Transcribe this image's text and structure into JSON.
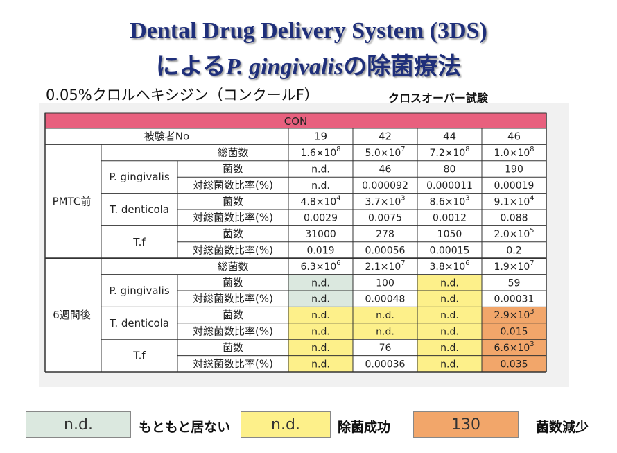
{
  "title": {
    "line1": "Dental Drug Delivery System (3DS)",
    "line2_pre": "による",
    "line2_italic": "P. gingivalis",
    "line2_post": "の除菌療法"
  },
  "subtitle": "0.05%クロルヘキシジン（コンクールF）",
  "trial_type": "クロスオーバー試験",
  "table": {
    "banner": "CON",
    "subject_header": "被験者No",
    "subjects": [
      "19",
      "42",
      "44",
      "46"
    ],
    "groups": [
      {
        "label": "PMTC前",
        "rows": [
          {
            "organism": "",
            "metric": "総菌数",
            "values": [
              [
                "1.6×10",
                "8"
              ],
              [
                "5.0×10",
                "7"
              ],
              [
                "7.2×10",
                "8"
              ],
              [
                "1.0×10",
                "8"
              ]
            ],
            "colors": [
              "w",
              "w",
              "w",
              "w"
            ]
          },
          {
            "organism": "P. gingivalis",
            "metric": "菌数",
            "values": [
              [
                "n.d."
              ],
              [
                "46"
              ],
              [
                "80"
              ],
              [
                "190"
              ]
            ],
            "colors": [
              "w",
              "w",
              "w",
              "w"
            ]
          },
          {
            "organism": "",
            "metric": "対総菌数比率(%)",
            "values": [
              [
                "n.d."
              ],
              [
                "0.000092"
              ],
              [
                "0.000011"
              ],
              [
                "0.00019"
              ]
            ],
            "colors": [
              "w",
              "w",
              "w",
              "w"
            ]
          },
          {
            "organism": "T. denticola",
            "metric": "菌数",
            "values": [
              [
                "4.8×10",
                "4"
              ],
              [
                "3.7×10",
                "3"
              ],
              [
                "8.6×10",
                "3"
              ],
              [
                "9.1×10",
                "4"
              ]
            ],
            "colors": [
              "w",
              "w",
              "w",
              "w"
            ]
          },
          {
            "organism": "",
            "metric": "対総菌数比率(%)",
            "values": [
              [
                "0.0029"
              ],
              [
                "0.0075"
              ],
              [
                "0.0012"
              ],
              [
                "0.088"
              ]
            ],
            "colors": [
              "w",
              "w",
              "w",
              "w"
            ]
          },
          {
            "organism": "T.f",
            "metric": "菌数",
            "values": [
              [
                "31000"
              ],
              [
                "278"
              ],
              [
                "1050"
              ],
              [
                "2.0×10",
                "5"
              ]
            ],
            "colors": [
              "w",
              "w",
              "w",
              "w"
            ]
          },
          {
            "organism": "",
            "metric": "対総菌数比率(%)",
            "values": [
              [
                "0.019"
              ],
              [
                "0.00056"
              ],
              [
                "0.00015"
              ],
              [
                "0.2"
              ]
            ],
            "colors": [
              "w",
              "w",
              "w",
              "w"
            ]
          }
        ]
      },
      {
        "label": "6週間後",
        "rows": [
          {
            "organism": "",
            "metric": "総菌数",
            "values": [
              [
                "6.3×10",
                "6"
              ],
              [
                "2.1×10",
                "7"
              ],
              [
                "3.8×10",
                "6"
              ],
              [
                "1.9×10",
                "7"
              ]
            ],
            "colors": [
              "w",
              "w",
              "w",
              "w"
            ]
          },
          {
            "organism": "P. gingivalis",
            "metric": "菌数",
            "values": [
              [
                "n.d."
              ],
              [
                "100"
              ],
              [
                "n.d."
              ],
              [
                "59"
              ]
            ],
            "colors": [
              "g",
              "w",
              "y",
              "w"
            ]
          },
          {
            "organism": "",
            "metric": "対総菌数比率(%)",
            "values": [
              [
                "n.d."
              ],
              [
                "0.00048"
              ],
              [
                "n.d."
              ],
              [
                "0.00031"
              ]
            ],
            "colors": [
              "g",
              "w",
              "y",
              "w"
            ]
          },
          {
            "organism": "T. denticola",
            "metric": "菌数",
            "values": [
              [
                "n.d."
              ],
              [
                "n.d."
              ],
              [
                "n.d."
              ],
              [
                "2.9×10",
                "3"
              ]
            ],
            "colors": [
              "y",
              "y",
              "y",
              "o"
            ]
          },
          {
            "organism": "",
            "metric": "対総菌数比率(%)",
            "values": [
              [
                "n.d."
              ],
              [
                "n.d."
              ],
              [
                "n.d."
              ],
              [
                "0.015"
              ]
            ],
            "colors": [
              "y",
              "y",
              "y",
              "o"
            ]
          },
          {
            "organism": "T.f",
            "metric": "菌数",
            "values": [
              [
                "n.d."
              ],
              [
                "76"
              ],
              [
                "n.d."
              ],
              [
                "6.6×10",
                "3"
              ]
            ],
            "colors": [
              "y",
              "w",
              "y",
              "o"
            ]
          },
          {
            "organism": "",
            "metric": "対総菌数比率(%)",
            "values": [
              [
                "n.d."
              ],
              [
                "0.00036"
              ],
              [
                "n.d."
              ],
              [
                "0.035"
              ]
            ],
            "colors": [
              "y",
              "w",
              "y",
              "o"
            ]
          }
        ]
      }
    ]
  },
  "cell_colors": {
    "w": "#ffffff",
    "g": "#dbe8df",
    "y": "#fdf08a",
    "o": "#f2a66a",
    "banner": "#e8607e"
  },
  "legend": [
    {
      "swatch_text": "n.d.",
      "label": "もともと居ない",
      "color": "#dbe8df"
    },
    {
      "swatch_text": "n.d.",
      "label": "除菌成功",
      "color": "#fdf08a"
    },
    {
      "swatch_text": "130",
      "label": "菌数減少",
      "color": "#f2a66a"
    }
  ]
}
